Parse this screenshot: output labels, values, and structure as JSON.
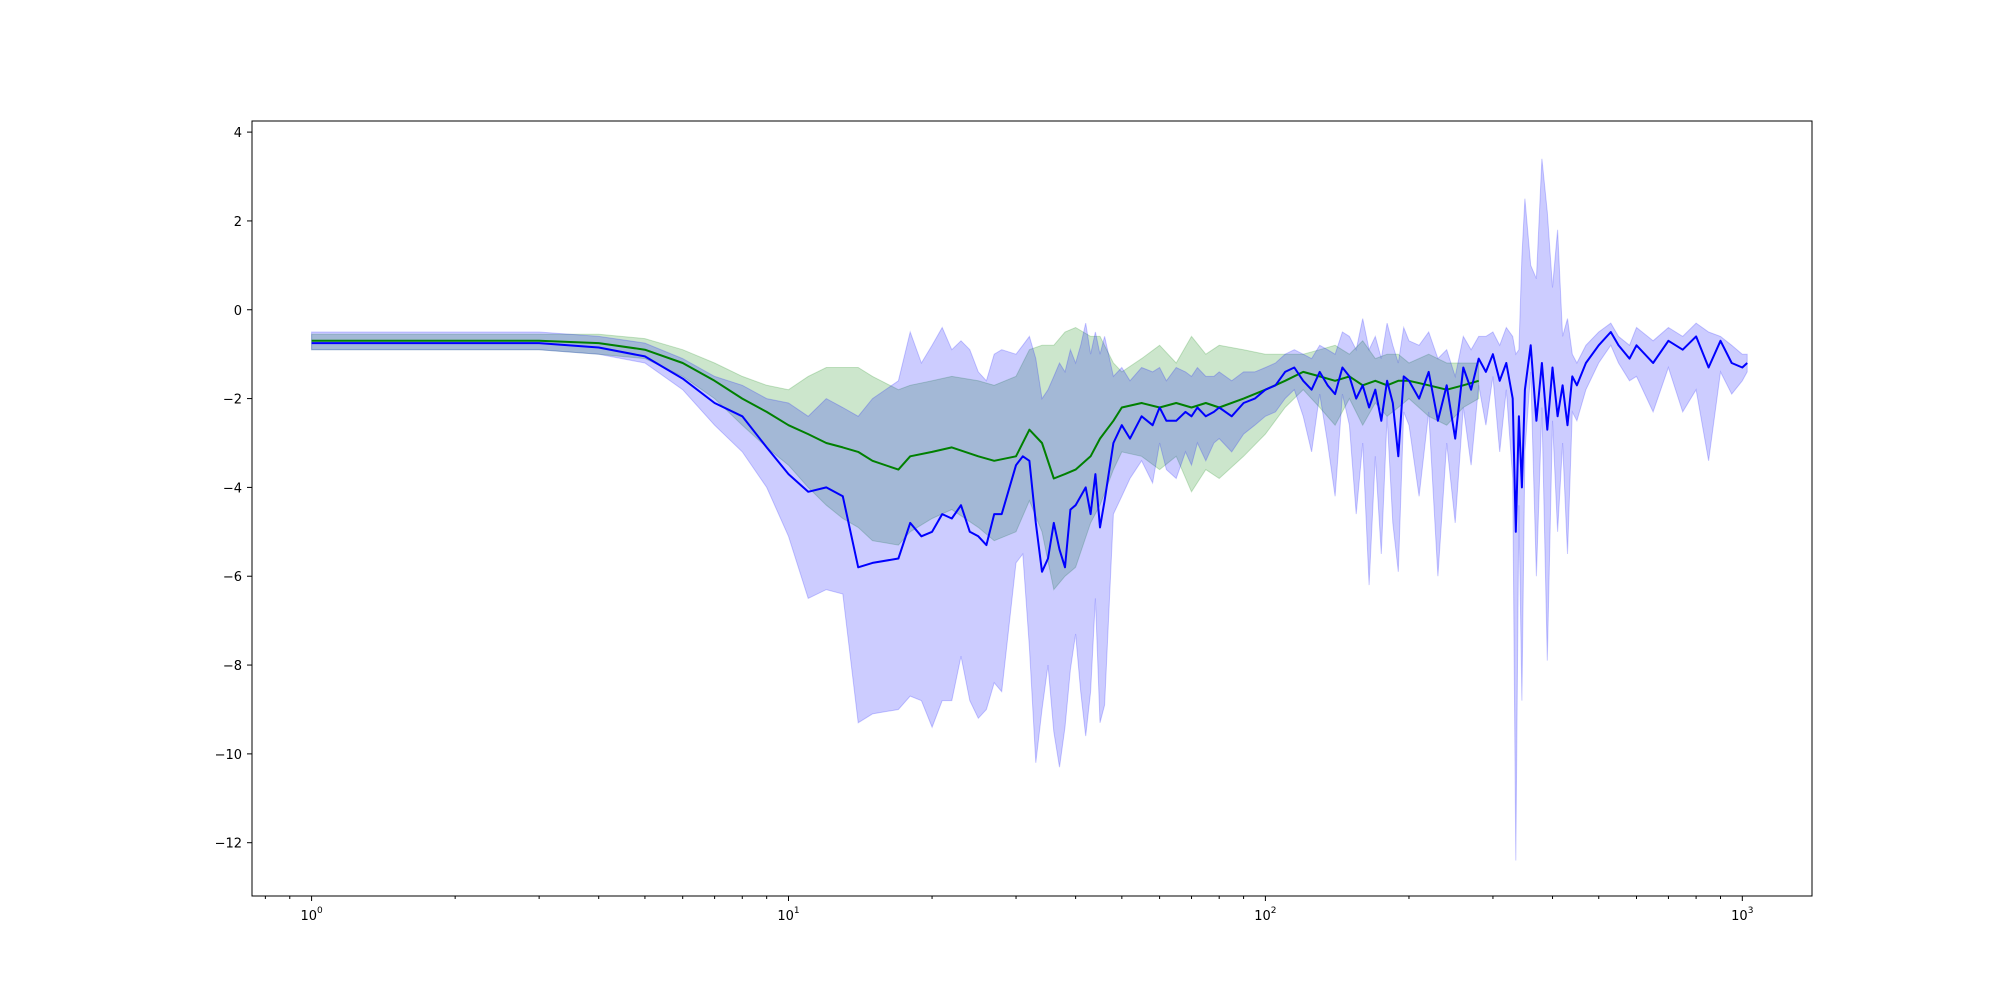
{
  "chart_data": {
    "type": "line",
    "title": "",
    "xlabel": "",
    "ylabel": "",
    "xscale": "log",
    "xlim": [
      0.75,
      1400
    ],
    "ylim": [
      -13.2,
      4.25
    ],
    "grid": false,
    "x_ticks": [
      {
        "value": 1,
        "base": "10",
        "exp": "0"
      },
      {
        "value": 10,
        "base": "10",
        "exp": "1"
      },
      {
        "value": 100,
        "base": "10",
        "exp": "2"
      },
      {
        "value": 1000,
        "base": "10",
        "exp": "3"
      }
    ],
    "y_ticks": [
      {
        "value": 4,
        "label": "4"
      },
      {
        "value": 2,
        "label": "2"
      },
      {
        "value": 0,
        "label": "0"
      },
      {
        "value": -2,
        "label": "−2"
      },
      {
        "value": -4,
        "label": "−4"
      },
      {
        "value": -6,
        "label": "−6"
      },
      {
        "value": -8,
        "label": "−8"
      },
      {
        "value": -10,
        "label": "−10"
      },
      {
        "value": -12,
        "label": "−12"
      }
    ],
    "series": [
      {
        "color": "#008000",
        "band_color": "#008000",
        "band_opacity": 0.2,
        "x": [
          1,
          2,
          3,
          4,
          5,
          6,
          7,
          8,
          9,
          10,
          11,
          12,
          13,
          14,
          15,
          17,
          18,
          20,
          22,
          25,
          27,
          30,
          32,
          34,
          36,
          38,
          40,
          43,
          45,
          48,
          50,
          55,
          60,
          65,
          70,
          75,
          80,
          90,
          100,
          110,
          120,
          130,
          140,
          150,
          160,
          170,
          180,
          190,
          200,
          220,
          240,
          260,
          280
        ],
        "y": [
          -0.7,
          -0.7,
          -0.7,
          -0.75,
          -0.9,
          -1.2,
          -1.6,
          -2.0,
          -2.3,
          -2.6,
          -2.8,
          -3.0,
          -3.1,
          -3.2,
          -3.4,
          -3.6,
          -3.3,
          -3.2,
          -3.1,
          -3.3,
          -3.4,
          -3.3,
          -2.7,
          -3.0,
          -3.8,
          -3.7,
          -3.6,
          -3.3,
          -2.9,
          -2.5,
          -2.2,
          -2.1,
          -2.2,
          -2.1,
          -2.2,
          -2.1,
          -2.2,
          -2.0,
          -1.8,
          -1.6,
          -1.4,
          -1.5,
          -1.6,
          -1.5,
          -1.7,
          -1.6,
          -1.7,
          -1.6,
          -1.6,
          -1.7,
          -1.8,
          -1.7,
          -1.6
        ],
        "lower": [
          -0.9,
          -0.9,
          -0.9,
          -1.0,
          -1.1,
          -1.5,
          -2.0,
          -2.6,
          -3.1,
          -3.5,
          -4.0,
          -4.4,
          -4.7,
          -4.9,
          -5.2,
          -5.3,
          -5.0,
          -4.7,
          -4.5,
          -4.9,
          -5.2,
          -5.0,
          -4.3,
          -5.0,
          -6.3,
          -6.0,
          -5.8,
          -4.8,
          -4.4,
          -3.6,
          -3.2,
          -3.3,
          -3.6,
          -3.3,
          -4.1,
          -3.6,
          -3.8,
          -3.3,
          -2.8,
          -2.2,
          -1.8,
          -2.2,
          -2.6,
          -2.0,
          -2.6,
          -2.1,
          -2.4,
          -2.2,
          -2.0,
          -2.4,
          -2.6,
          -2.2,
          -2.0
        ],
        "upper": [
          -0.55,
          -0.55,
          -0.55,
          -0.55,
          -0.65,
          -0.9,
          -1.2,
          -1.5,
          -1.7,
          -1.8,
          -1.5,
          -1.3,
          -1.3,
          -1.3,
          -1.5,
          -1.8,
          -1.7,
          -1.6,
          -1.5,
          -1.6,
          -1.7,
          -1.5,
          -0.9,
          -0.8,
          -0.8,
          -0.5,
          -0.4,
          -0.6,
          -0.6,
          -1.2,
          -1.4,
          -1.1,
          -0.8,
          -1.2,
          -0.6,
          -1.0,
          -0.8,
          -0.9,
          -1.0,
          -1.0,
          -1.0,
          -0.9,
          -0.8,
          -1.0,
          -0.7,
          -1.1,
          -1.0,
          -1.0,
          -1.2,
          -1.0,
          -1.2,
          -1.2,
          -1.2
        ]
      },
      {
        "color": "#0000ff",
        "band_color": "#0000ff",
        "band_opacity": 0.2,
        "x": [
          1,
          2,
          3,
          4,
          5,
          6,
          7,
          8,
          9,
          10,
          11,
          12,
          13,
          14,
          15,
          17,
          18,
          19,
          20,
          21,
          22,
          23,
          24,
          25,
          26,
          27,
          28,
          30,
          31,
          32,
          33,
          34,
          35,
          36,
          37,
          38,
          39,
          40,
          41,
          42,
          43,
          44,
          45,
          46,
          48,
          50,
          52,
          55,
          58,
          60,
          62,
          65,
          68,
          70,
          72,
          75,
          78,
          80,
          85,
          90,
          95,
          100,
          105,
          110,
          115,
          120,
          125,
          130,
          135,
          140,
          145,
          150,
          155,
          160,
          165,
          170,
          175,
          180,
          185,
          190,
          195,
          200,
          210,
          220,
          230,
          240,
          250,
          260,
          270,
          280,
          290,
          300,
          310,
          320,
          330,
          335,
          340,
          345,
          350,
          360,
          370,
          380,
          390,
          400,
          410,
          420,
          430,
          440,
          450,
          470,
          500,
          530,
          550,
          580,
          600,
          650,
          700,
          750,
          800,
          850,
          900,
          950,
          1000,
          1024
        ],
        "y": [
          -0.75,
          -0.75,
          -0.75,
          -0.85,
          -1.05,
          -1.55,
          -2.1,
          -2.4,
          -3.1,
          -3.7,
          -4.1,
          -4.0,
          -4.2,
          -5.8,
          -5.7,
          -5.6,
          -4.8,
          -5.1,
          -5.0,
          -4.6,
          -4.7,
          -4.4,
          -5.0,
          -5.1,
          -5.3,
          -4.6,
          -4.6,
          -3.5,
          -3.3,
          -3.4,
          -4.8,
          -5.9,
          -5.6,
          -4.8,
          -5.4,
          -5.8,
          -4.5,
          -4.4,
          -4.2,
          -4.0,
          -4.6,
          -3.7,
          -4.9,
          -4.3,
          -3.0,
          -2.6,
          -2.9,
          -2.4,
          -2.6,
          -2.2,
          -2.5,
          -2.5,
          -2.3,
          -2.4,
          -2.2,
          -2.4,
          -2.3,
          -2.2,
          -2.4,
          -2.1,
          -2.0,
          -1.8,
          -1.7,
          -1.4,
          -1.3,
          -1.6,
          -1.8,
          -1.4,
          -1.7,
          -1.9,
          -1.3,
          -1.5,
          -2.0,
          -1.7,
          -2.2,
          -1.8,
          -2.5,
          -1.6,
          -2.1,
          -3.3,
          -1.5,
          -1.6,
          -2.0,
          -1.4,
          -2.5,
          -1.7,
          -2.9,
          -1.3,
          -1.8,
          -1.1,
          -1.4,
          -1.0,
          -1.6,
          -1.2,
          -2.0,
          -5.0,
          -2.4,
          -4.0,
          -1.8,
          -0.8,
          -2.5,
          -1.2,
          -2.7,
          -1.3,
          -2.4,
          -1.7,
          -2.6,
          -1.5,
          -1.7,
          -1.2,
          -0.8,
          -0.5,
          -0.8,
          -1.1,
          -0.8,
          -1.2,
          -0.7,
          -0.9,
          -0.6,
          -1.3,
          -0.7,
          -1.2,
          -1.3,
          -1.2
        ],
        "lower": [
          -0.9,
          -0.9,
          -0.9,
          -1.0,
          -1.2,
          -1.8,
          -2.6,
          -3.2,
          -4.0,
          -5.1,
          -6.5,
          -6.3,
          -6.4,
          -9.3,
          -9.1,
          -9.0,
          -8.7,
          -8.8,
          -9.4,
          -8.8,
          -8.8,
          -7.8,
          -8.8,
          -9.2,
          -9.0,
          -8.4,
          -8.6,
          -5.7,
          -5.5,
          -7.6,
          -10.2,
          -9.0,
          -8.0,
          -9.5,
          -10.3,
          -9.4,
          -8.1,
          -7.3,
          -8.6,
          -9.6,
          -8.6,
          -6.5,
          -9.3,
          -8.9,
          -4.6,
          -4.2,
          -3.8,
          -3.4,
          -3.9,
          -3.0,
          -3.6,
          -3.8,
          -3.2,
          -3.5,
          -3.0,
          -3.4,
          -3.0,
          -2.9,
          -3.2,
          -2.8,
          -2.6,
          -2.4,
          -2.3,
          -2.0,
          -1.8,
          -2.4,
          -3.2,
          -1.9,
          -3.0,
          -4.2,
          -1.9,
          -2.6,
          -4.6,
          -3.0,
          -6.2,
          -3.3,
          -5.5,
          -2.4,
          -4.8,
          -5.9,
          -2.3,
          -2.6,
          -4.2,
          -2.3,
          -6.0,
          -3.0,
          -4.8,
          -2.2,
          -3.5,
          -1.7,
          -2.6,
          -1.5,
          -3.2,
          -1.8,
          -3.8,
          -12.4,
          -4.4,
          -8.8,
          -3.2,
          -1.4,
          -6.0,
          -2.2,
          -7.9,
          -2.5,
          -5.0,
          -3.0,
          -5.5,
          -2.3,
          -2.5,
          -1.8,
          -1.2,
          -0.8,
          -1.2,
          -1.6,
          -1.5,
          -2.3,
          -1.3,
          -2.3,
          -1.8,
          -3.4,
          -1.4,
          -1.9,
          -1.6,
          -1.4
        ],
        "upper": [
          -0.5,
          -0.5,
          -0.5,
          -0.6,
          -0.75,
          -1.1,
          -1.5,
          -1.7,
          -2.0,
          -2.1,
          -2.4,
          -2.0,
          -2.2,
          -2.4,
          -2.0,
          -1.6,
          -0.5,
          -1.2,
          -0.8,
          -0.4,
          -0.9,
          -0.7,
          -0.9,
          -1.4,
          -1.6,
          -1.0,
          -0.9,
          -1.0,
          -0.8,
          -0.6,
          -1.1,
          -2.0,
          -1.8,
          -1.5,
          -1.2,
          -1.4,
          -0.9,
          -1.2,
          -0.8,
          -0.3,
          -1.0,
          -0.5,
          -1.0,
          -0.6,
          -1.5,
          -1.3,
          -1.6,
          -1.3,
          -1.4,
          -1.3,
          -1.6,
          -1.3,
          -1.4,
          -1.5,
          -1.3,
          -1.5,
          -1.5,
          -1.4,
          -1.6,
          -1.4,
          -1.4,
          -1.3,
          -1.2,
          -1.0,
          -0.9,
          -1.0,
          -1.1,
          -0.8,
          -0.9,
          -1.0,
          -0.5,
          -0.6,
          -0.9,
          -0.2,
          -0.9,
          -0.6,
          -1.1,
          -0.3,
          -0.8,
          -1.2,
          -0.4,
          -0.7,
          -0.8,
          -0.5,
          -1.1,
          -0.9,
          -1.5,
          -0.6,
          -0.9,
          -0.6,
          -0.6,
          -0.5,
          -0.8,
          -0.4,
          -0.6,
          -1.0,
          -0.9,
          1.2,
          2.5,
          1.0,
          0.7,
          3.4,
          2.2,
          0.5,
          1.8,
          -0.6,
          -0.2,
          -1.0,
          -1.2,
          -0.8,
          -0.5,
          -0.3,
          -0.6,
          -0.8,
          -0.4,
          -0.7,
          -0.4,
          -0.6,
          -0.3,
          -0.5,
          -0.6,
          -0.8,
          -1.0,
          -1.0
        ]
      }
    ]
  }
}
